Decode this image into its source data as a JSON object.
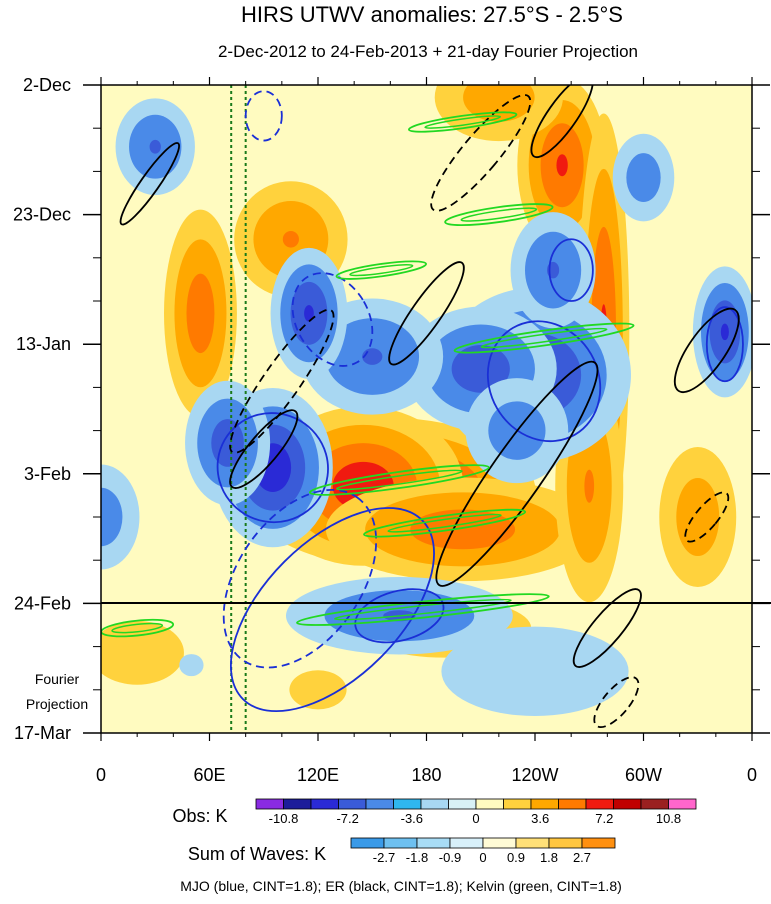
{
  "chart_data": {
    "type": "heatmap",
    "title": "HIRS UTWV anomalies: 27.5°S - 2.5°S",
    "subtitle": "2-Dec-2012 to 24-Feb-2013 + 21-day Fourier Projection",
    "x_ticks": [
      "0",
      "60E",
      "120E",
      "180",
      "120W",
      "60W",
      "0"
    ],
    "x_tick_values": [
      0,
      60,
      120,
      180,
      240,
      300,
      360
    ],
    "x_range": [
      0,
      360
    ],
    "y_ticks": [
      "2-Dec",
      "23-Dec",
      "13-Jan",
      "3-Feb",
      "24-Feb",
      "17-Mar"
    ],
    "y_tick_days": [
      0,
      21,
      42,
      63,
      84,
      105
    ],
    "y_range_days": [
      0,
      105
    ],
    "observation_end_day": 84,
    "projection_label": [
      "Fourier",
      "Projection"
    ],
    "reference_lines_deg": [
      72,
      80
    ],
    "obs_legend": {
      "label": "Obs: K",
      "colors": [
        "#8a2be2",
        "#1c1c9a",
        "#2a2ad6",
        "#3a5bd8",
        "#4a8ae8",
        "#2fb7ef",
        "#a8d7f2",
        "#d8f1f6",
        "#fffbc0",
        "#ffd23d",
        "#ffa800",
        "#ff7a00",
        "#f01a10",
        "#c00000",
        "#9a2020",
        "#ff66cc"
      ],
      "labels": [
        "-10.8",
        "-7.2",
        "-3.6",
        "0",
        "3.6",
        "7.2",
        "10.8"
      ]
    },
    "waves_legend": {
      "label": "Sum of Waves: K",
      "colors": [
        "#3a9ae8",
        "#6ec0f0",
        "#a8dcf5",
        "#d8f0fa",
        "#fffbd6",
        "#ffe078",
        "#ffc640",
        "#ff9010"
      ],
      "labels": [
        "-2.7",
        "-1.8",
        "-0.9",
        "0",
        "0.9",
        "1.8",
        "2.7"
      ]
    },
    "contour_note": "MJO (blue, CINT=1.8); ER (black, CINT=1.8); Kelvin (green, CINT=1.8)",
    "hotspots": [
      {
        "lon": 160,
        "day": 66,
        "amp": 11,
        "slon": 40,
        "sday": 6
      },
      {
        "lon": 145,
        "day": 65,
        "amp": 8,
        "slon": 30,
        "sday": 7
      },
      {
        "lon": 200,
        "day": 72,
        "amp": 6,
        "slon": 45,
        "sday": 5
      },
      {
        "lon": 255,
        "day": 13,
        "amp": 7,
        "slon": 14,
        "sday": 8
      },
      {
        "lon": 278,
        "day": 40,
        "amp": 7,
        "slon": 8,
        "sday": 20
      },
      {
        "lon": 270,
        "day": 65,
        "amp": 5,
        "slon": 12,
        "sday": 12
      },
      {
        "lon": 55,
        "day": 37,
        "amp": 6,
        "slon": 12,
        "sday": 10
      },
      {
        "lon": 105,
        "day": 25,
        "amp": 5,
        "slon": 20,
        "sday": 6
      },
      {
        "lon": 220,
        "day": 2,
        "amp": 4,
        "slon": 25,
        "sday": 5
      },
      {
        "lon": 20,
        "day": 92,
        "amp": 2.5,
        "slon": 25,
        "sday": 5
      },
      {
        "lon": 190,
        "day": 88,
        "amp": 3,
        "slon": 40,
        "sday": 4
      },
      {
        "lon": 120,
        "day": 98,
        "amp": 2,
        "slon": 20,
        "sday": 4
      },
      {
        "lon": 330,
        "day": 70,
        "amp": 4,
        "slon": 15,
        "sday": 8
      },
      {
        "lon": 95,
        "day": 62,
        "amp": -8,
        "slon": 18,
        "sday": 7
      },
      {
        "lon": 70,
        "day": 58,
        "amp": -6,
        "slon": 14,
        "sday": 6
      },
      {
        "lon": 240,
        "day": 47,
        "amp": -7,
        "slon": 30,
        "sday": 8
      },
      {
        "lon": 210,
        "day": 46,
        "amp": -6,
        "slon": 25,
        "sday": 6
      },
      {
        "lon": 150,
        "day": 44,
        "amp": -5,
        "slon": 25,
        "sday": 6
      },
      {
        "lon": 115,
        "day": 37,
        "amp": -7,
        "slon": 12,
        "sday": 6
      },
      {
        "lon": 345,
        "day": 40,
        "amp": -7,
        "slon": 10,
        "sday": 6
      },
      {
        "lon": 165,
        "day": 86,
        "amp": -5,
        "slon": 40,
        "sday": 4
      },
      {
        "lon": 250,
        "day": 30,
        "amp": -5,
        "slon": 15,
        "sday": 6
      },
      {
        "lon": 240,
        "day": 95,
        "amp": -2.5,
        "slon": 50,
        "sday": 7
      },
      {
        "lon": 50,
        "day": 94,
        "amp": -1.5,
        "slon": 30,
        "sday": 8
      },
      {
        "lon": 30,
        "day": 10,
        "amp": -5,
        "slon": 14,
        "sday": 5
      },
      {
        "lon": 300,
        "day": 15,
        "amp": -4,
        "slon": 12,
        "sday": 5
      },
      {
        "lon": 0,
        "day": 70,
        "amp": -4,
        "slon": 15,
        "sday": 6
      },
      {
        "lon": 230,
        "day": 56,
        "amp": -4,
        "slon": 20,
        "sday": 6
      }
    ],
    "contours": [
      {
        "series": "MJO",
        "lon": 95,
        "day": 62,
        "rlon": 30,
        "rday": 9,
        "rot": -60
      },
      {
        "series": "MJO",
        "lon": 110,
        "day": 80,
        "rlon": 55,
        "rday": 10,
        "rot": -55
      },
      {
        "series": "MJO",
        "lon": 128,
        "day": 85,
        "rlon": 70,
        "rday": 11,
        "rot": -45
      },
      {
        "series": "MJO",
        "lon": 245,
        "day": 48,
        "rlon": 30,
        "rday": 10,
        "rot": -30
      },
      {
        "series": "MJO",
        "lon": 128,
        "day": 38,
        "rlon": 20,
        "rday": 8,
        "rot": -30
      },
      {
        "series": "MJO",
        "lon": 345,
        "day": 42,
        "rlon": 10,
        "rday": 6,
        "rot": 0
      },
      {
        "series": "MJO",
        "lon": 260,
        "day": 30,
        "rlon": 12,
        "rday": 5,
        "rot": 0
      },
      {
        "series": "MJO",
        "lon": 90,
        "day": 5,
        "rlon": 10,
        "rday": 4,
        "rot": 0
      },
      {
        "series": "MJO",
        "lon": 165,
        "day": 86,
        "rlon": 25,
        "rday": 4,
        "rot": -15
      },
      {
        "series": "ER",
        "lon": 230,
        "day": 63,
        "rlon": 14,
        "rday": 22,
        "rot": 35
      },
      {
        "series": "ER",
        "lon": 210,
        "day": 11,
        "rlon": 10,
        "rday": 12,
        "rot": 40
      },
      {
        "series": "ER",
        "lon": 335,
        "day": 43,
        "rlon": 10,
        "rday": 8,
        "rot": 35
      },
      {
        "series": "ER",
        "lon": 90,
        "day": 59,
        "rlon": 8,
        "rday": 8,
        "rot": 40
      },
      {
        "series": "ER",
        "lon": 100,
        "day": 48,
        "rlon": 10,
        "rday": 14,
        "rot": 35
      },
      {
        "series": "ER",
        "lon": 180,
        "day": 37,
        "rlon": 8,
        "rday": 10,
        "rot": 35
      },
      {
        "series": "ER",
        "lon": 280,
        "day": 88,
        "rlon": 8,
        "rday": 8,
        "rot": 40
      },
      {
        "series": "ER",
        "lon": 285,
        "day": 100,
        "rlon": 7,
        "rday": 5,
        "rot": 40
      },
      {
        "series": "ER",
        "lon": 27,
        "day": 16,
        "rlon": 5,
        "rday": 8,
        "rot": 35
      },
      {
        "series": "ER",
        "lon": 255,
        "day": 5,
        "rlon": 8,
        "rday": 8,
        "rot": 35
      },
      {
        "series": "ER",
        "lon": 335,
        "day": 70,
        "rlon": 6,
        "rday": 5,
        "rot": 40
      },
      {
        "series": "Kelvin",
        "lon": 220,
        "day": 21,
        "rlon": 30,
        "rday": 1.2,
        "rot": -8
      },
      {
        "series": "Kelvin",
        "lon": 245,
        "day": 41,
        "rlon": 50,
        "rday": 1.2,
        "rot": -8
      },
      {
        "series": "Kelvin",
        "lon": 165,
        "day": 64,
        "rlon": 50,
        "rday": 1.3,
        "rot": -8
      },
      {
        "series": "Kelvin",
        "lon": 190,
        "day": 71,
        "rlon": 45,
        "rday": 1.2,
        "rot": -8
      },
      {
        "series": "Kelvin",
        "lon": 178,
        "day": 85,
        "rlon": 70,
        "rday": 1.3,
        "rot": -6
      },
      {
        "series": "Kelvin",
        "lon": 200,
        "day": 6,
        "rlon": 30,
        "rday": 1,
        "rot": -8
      },
      {
        "series": "Kelvin",
        "lon": 155,
        "day": 30,
        "rlon": 25,
        "rday": 1,
        "rot": -8
      },
      {
        "series": "Kelvin",
        "lon": 20,
        "day": 88,
        "rlon": 20,
        "rday": 1.2,
        "rot": -6
      }
    ],
    "contour_colors": {
      "MJO": "#1a2fd6",
      "ER": "#000000",
      "Kelvin": "#22d822"
    }
  }
}
